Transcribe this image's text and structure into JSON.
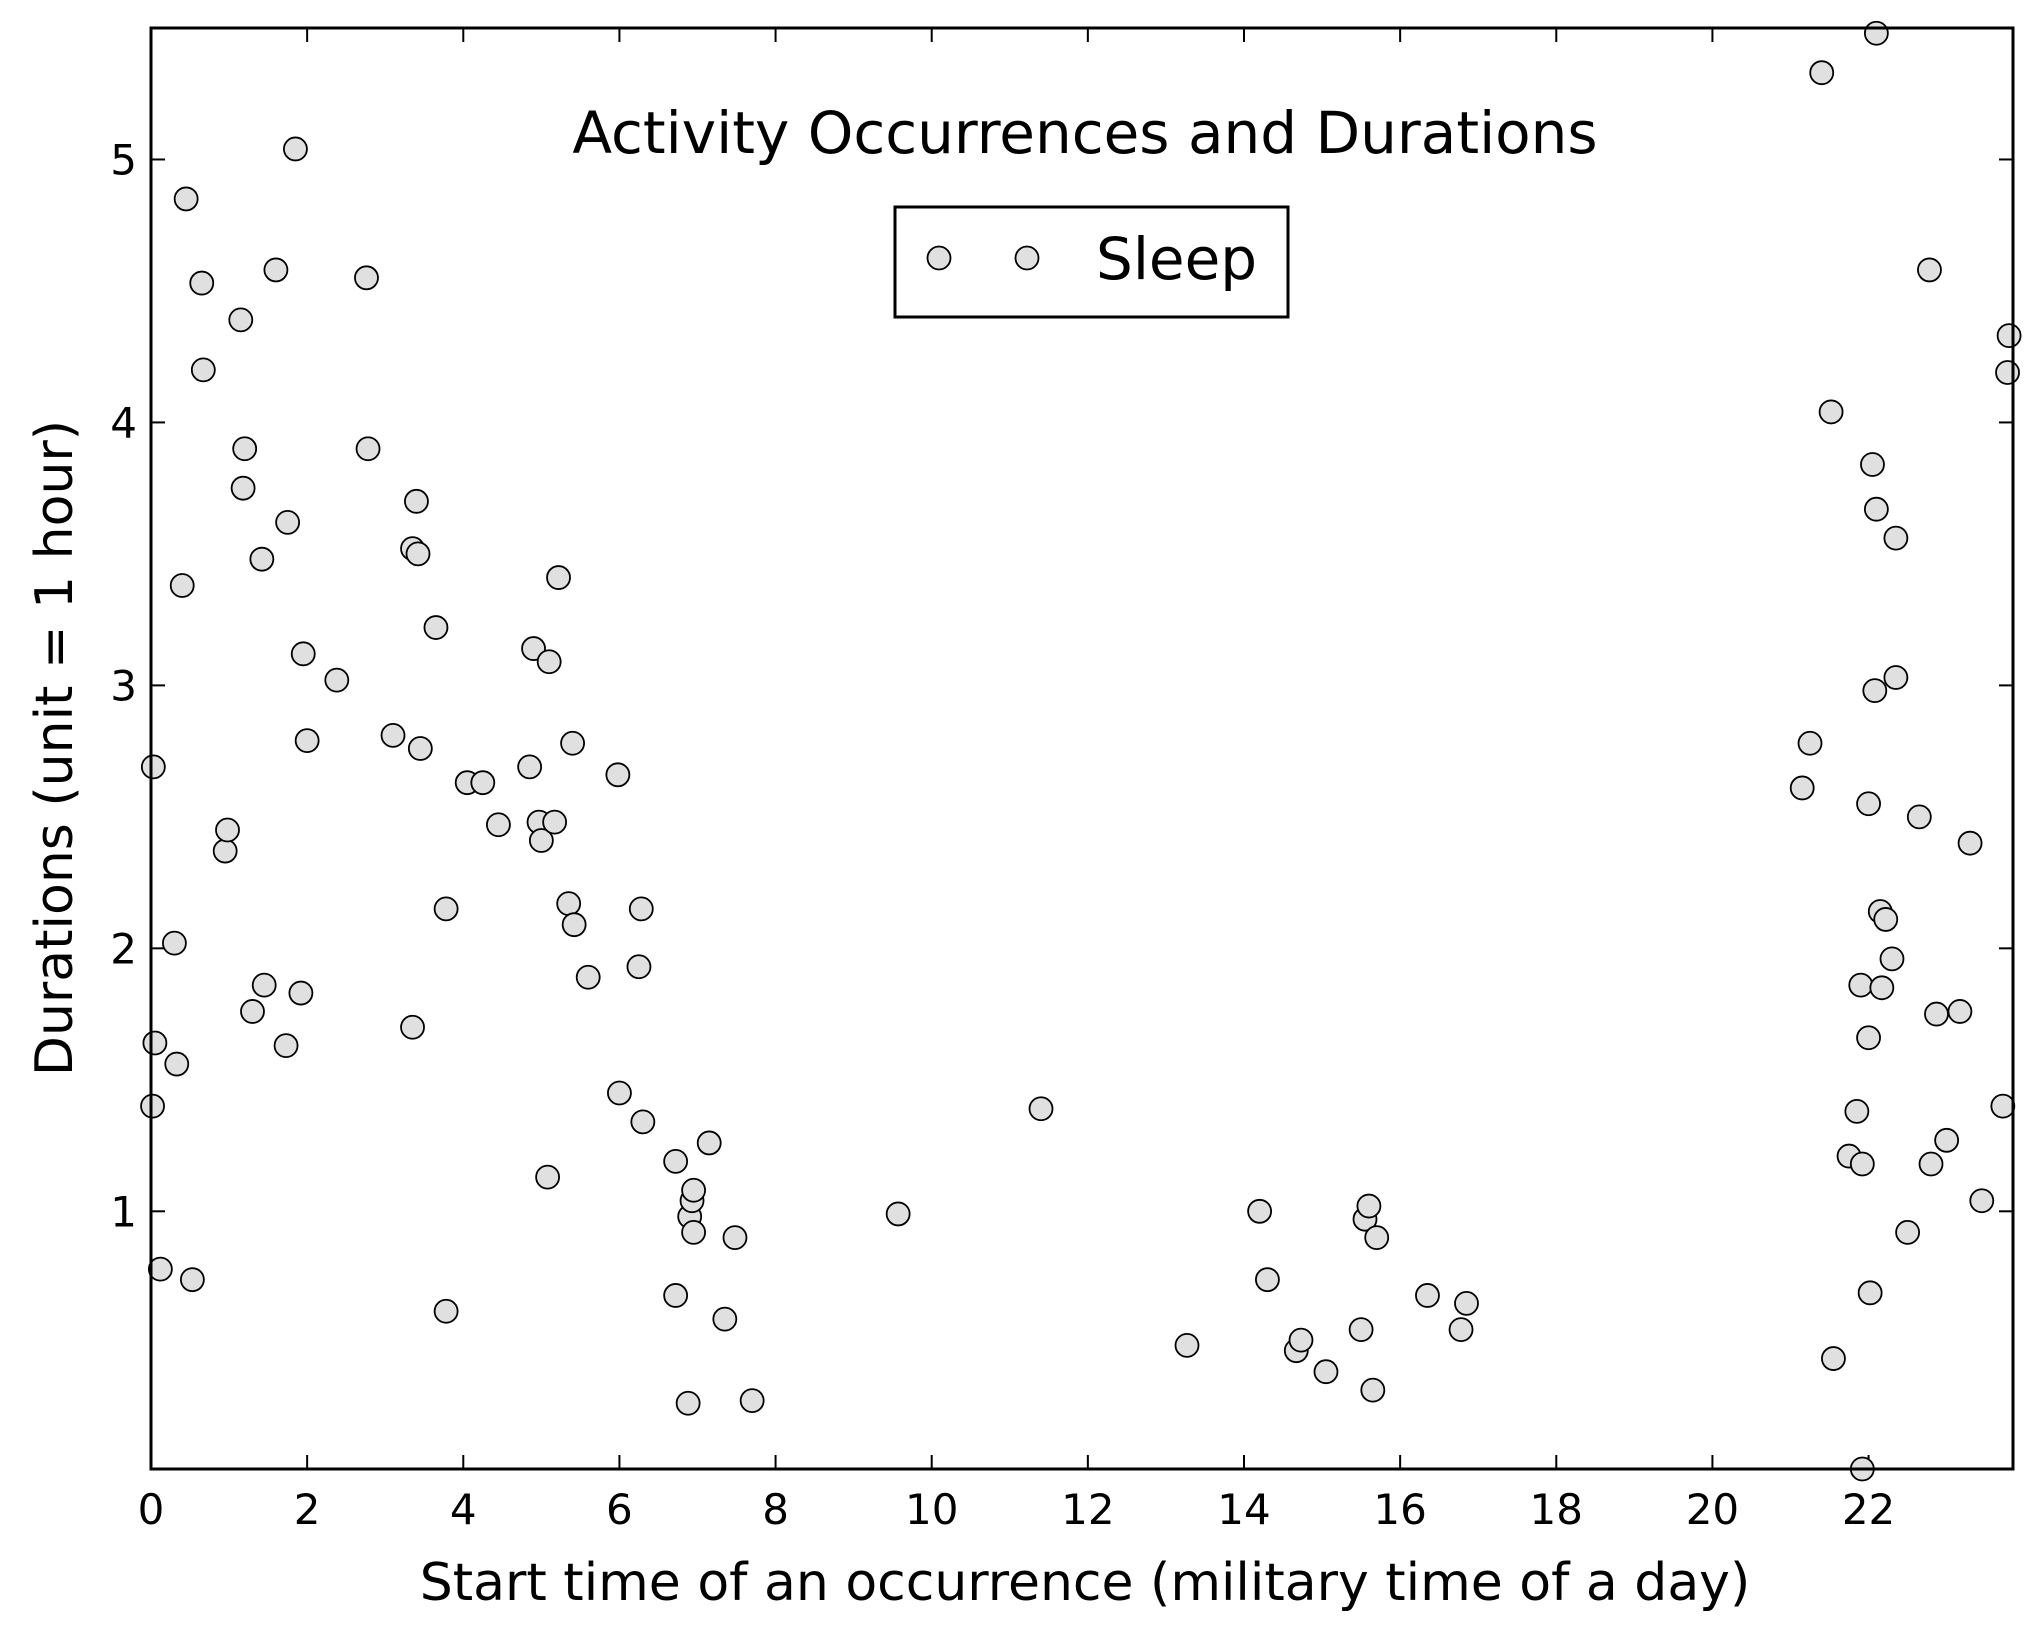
{
  "chart_data": {
    "type": "scatter",
    "title": "Activity Occurrences and Durations",
    "xlabel": "Start time of an occurrence (military time of a day)",
    "ylabel": "Durations (unit = 1 hour)",
    "xlim": [
      0,
      23.85
    ],
    "ylim": [
      0.02,
      5.5
    ],
    "xticks": [
      0,
      2,
      4,
      6,
      8,
      10,
      12,
      14,
      16,
      18,
      20,
      22
    ],
    "yticks": [
      1,
      2,
      3,
      4,
      5
    ],
    "grid": false,
    "legend": {
      "position": "top-center",
      "entries": [
        "Sleep"
      ]
    },
    "marker_fill": "#e0e0e0",
    "marker_edge": "#000000",
    "series": [
      {
        "name": "Sleep",
        "points": [
          [
            0.03,
            2.69
          ],
          [
            0.05,
            1.64
          ],
          [
            0.02,
            1.4
          ],
          [
            0.12,
            0.78
          ],
          [
            0.3,
            2.02
          ],
          [
            0.33,
            1.56
          ],
          [
            0.4,
            3.38
          ],
          [
            0.45,
            4.85
          ],
          [
            0.53,
            0.74
          ],
          [
            0.65,
            4.53
          ],
          [
            0.67,
            4.2
          ],
          [
            0.95,
            2.37
          ],
          [
            0.98,
            2.45
          ],
          [
            1.15,
            4.39
          ],
          [
            1.18,
            3.75
          ],
          [
            1.2,
            3.9
          ],
          [
            1.3,
            1.76
          ],
          [
            1.42,
            3.48
          ],
          [
            1.45,
            1.86
          ],
          [
            1.6,
            4.58
          ],
          [
            1.73,
            1.63
          ],
          [
            1.75,
            3.62
          ],
          [
            1.85,
            5.04
          ],
          [
            1.92,
            1.83
          ],
          [
            1.95,
            3.12
          ],
          [
            2.0,
            2.79
          ],
          [
            2.38,
            3.02
          ],
          [
            2.76,
            4.55
          ],
          [
            2.78,
            3.9
          ],
          [
            3.1,
            2.81
          ],
          [
            3.35,
            3.52
          ],
          [
            3.4,
            3.7
          ],
          [
            3.42,
            3.5
          ],
          [
            3.35,
            1.7
          ],
          [
            3.45,
            2.76
          ],
          [
            3.65,
            3.22
          ],
          [
            3.78,
            2.15
          ],
          [
            3.78,
            0.62
          ],
          [
            4.05,
            2.63
          ],
          [
            4.25,
            2.63
          ],
          [
            4.45,
            2.47
          ],
          [
            4.85,
            2.69
          ],
          [
            4.9,
            3.14
          ],
          [
            4.97,
            2.48
          ],
          [
            5.0,
            2.41
          ],
          [
            5.08,
            1.13
          ],
          [
            5.1,
            3.09
          ],
          [
            5.17,
            2.48
          ],
          [
            5.22,
            3.41
          ],
          [
            5.35,
            2.17
          ],
          [
            5.4,
            2.78
          ],
          [
            5.42,
            2.09
          ],
          [
            5.6,
            1.89
          ],
          [
            5.98,
            2.66
          ],
          [
            6.0,
            1.45
          ],
          [
            6.25,
            1.93
          ],
          [
            6.28,
            2.15
          ],
          [
            6.3,
            1.34
          ],
          [
            6.72,
            1.19
          ],
          [
            6.72,
            0.68
          ],
          [
            6.88,
            0.27
          ],
          [
            6.9,
            0.98
          ],
          [
            6.93,
            1.04
          ],
          [
            6.95,
            0.92
          ],
          [
            6.95,
            1.08
          ],
          [
            7.15,
            1.26
          ],
          [
            7.35,
            0.59
          ],
          [
            7.48,
            0.9
          ],
          [
            7.7,
            0.28
          ],
          [
            9.57,
            0.99
          ],
          [
            11.4,
            1.39
          ],
          [
            13.27,
            0.49
          ],
          [
            14.2,
            1.0
          ],
          [
            14.3,
            0.74
          ],
          [
            14.67,
            0.47
          ],
          [
            14.73,
            0.51
          ],
          [
            15.05,
            0.39
          ],
          [
            15.5,
            0.55
          ],
          [
            15.55,
            0.97
          ],
          [
            15.6,
            1.02
          ],
          [
            15.65,
            0.32
          ],
          [
            15.7,
            0.9
          ],
          [
            16.35,
            0.68
          ],
          [
            16.78,
            0.55
          ],
          [
            16.85,
            0.65
          ],
          [
            21.15,
            2.61
          ],
          [
            21.25,
            2.78
          ],
          [
            21.4,
            5.33
          ],
          [
            21.52,
            4.04
          ],
          [
            21.55,
            0.44
          ],
          [
            21.75,
            1.21
          ],
          [
            21.85,
            1.38
          ],
          [
            21.9,
            1.86
          ],
          [
            21.92,
            1.18
          ],
          [
            21.92,
            0.02
          ],
          [
            22.0,
            2.55
          ],
          [
            22.0,
            1.66
          ],
          [
            22.02,
            0.69
          ],
          [
            22.05,
            3.84
          ],
          [
            22.08,
            2.98
          ],
          [
            22.1,
            3.67
          ],
          [
            22.1,
            5.48
          ],
          [
            22.15,
            2.14
          ],
          [
            22.17,
            1.85
          ],
          [
            22.22,
            2.11
          ],
          [
            22.3,
            1.96
          ],
          [
            22.35,
            3.03
          ],
          [
            22.35,
            3.56
          ],
          [
            22.5,
            0.92
          ],
          [
            22.65,
            2.5
          ],
          [
            22.78,
            4.58
          ],
          [
            22.8,
            1.18
          ],
          [
            22.87,
            1.75
          ],
          [
            23.0,
            1.27
          ],
          [
            23.17,
            1.76
          ],
          [
            23.3,
            2.4
          ],
          [
            23.45,
            1.04
          ],
          [
            23.72,
            1.4
          ],
          [
            23.78,
            4.19
          ],
          [
            23.8,
            4.33
          ]
        ]
      }
    ]
  }
}
